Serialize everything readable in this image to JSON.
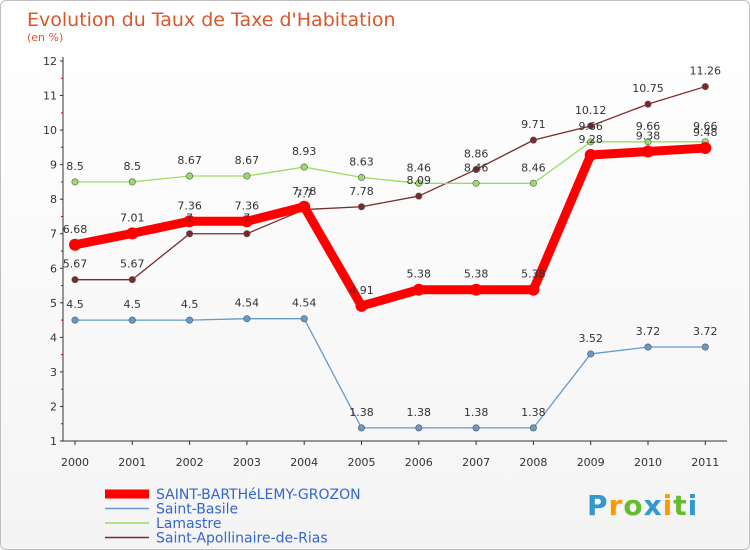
{
  "chart_data": {
    "type": "line",
    "title": "Evolution du Taux de Taxe d'Habitation",
    "subtitle": "(en %)",
    "x": [
      "2000",
      "2001",
      "2002",
      "2003",
      "2004",
      "2005",
      "2006",
      "2007",
      "2008",
      "2009",
      "2010",
      "2011"
    ],
    "yticks": [
      "1",
      "2",
      "3",
      "4",
      "5",
      "6",
      "7",
      "8",
      "9",
      "10",
      "11",
      "12"
    ],
    "ylim": [
      1,
      12
    ],
    "grid": false,
    "legend_position": "bottom-left",
    "series": [
      {
        "name": "SAINT-BARTHéLEMY-GROZON",
        "color": "#ff0000",
        "values": [
          6.68,
          7.01,
          7.36,
          7.36,
          7.78,
          4.91,
          5.38,
          5.38,
          5.38,
          9.28,
          9.38,
          9.48
        ],
        "labels": [
          "6.68",
          "7.01",
          "7.36",
          "7.36",
          "7.78",
          "4.91",
          "5.38",
          "5.38",
          "5.38",
          "9.28",
          "9.38",
          "9.48"
        ]
      },
      {
        "name": "Saint-Basile",
        "color": "#6699cc",
        "values": [
          4.5,
          4.5,
          4.5,
          4.54,
          4.54,
          1.38,
          1.38,
          1.38,
          1.38,
          3.52,
          3.72,
          3.72
        ],
        "labels": [
          "4.5",
          "4.5",
          "4.5",
          "4.54",
          "4.54",
          "1.38",
          "1.38",
          "1.38",
          "1.38",
          "3.52",
          "3.72",
          "3.72"
        ]
      },
      {
        "name": "Lamastre",
        "color": "#99dd66",
        "values": [
          8.5,
          8.5,
          8.67,
          8.67,
          8.93,
          8.63,
          8.46,
          8.46,
          8.46,
          9.66,
          9.66,
          9.66
        ],
        "labels": [
          "8.5",
          "8.5",
          "8.67",
          "8.67",
          "8.93",
          "8.63",
          "8.46",
          "8.46",
          "8.46",
          "9.66",
          "9.66",
          "9.66"
        ]
      },
      {
        "name": "Saint-Apollinaire-de-Rias",
        "color": "#7a2a2a",
        "values": [
          5.67,
          5.67,
          7.0,
          7.0,
          7.7,
          7.78,
          8.09,
          8.86,
          9.71,
          10.12,
          10.75,
          11.26
        ],
        "labels": [
          "5.67",
          "5.67",
          "7",
          "7",
          "7.7",
          "7.78",
          "8.09",
          "8.86",
          "9.71",
          "10.12",
          "10.75",
          "11.26"
        ]
      }
    ]
  },
  "logo": {
    "text": "Proxiti",
    "letters": [
      "P",
      "r",
      "o",
      "x",
      "i",
      "t",
      "i"
    ],
    "colors": [
      "#3399cc",
      "#ff9900",
      "#66bb33",
      "#3399cc",
      "#ff9900",
      "#66bb33",
      "#3399cc"
    ]
  }
}
